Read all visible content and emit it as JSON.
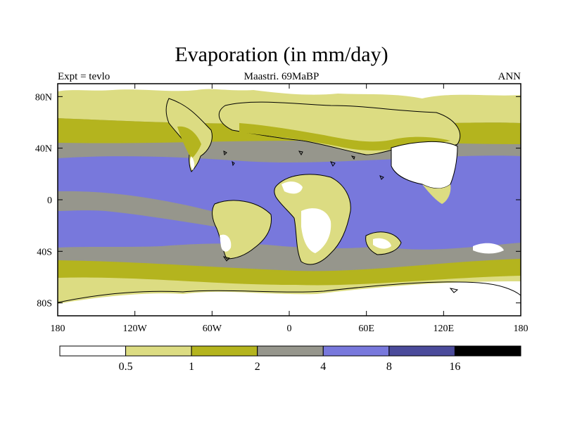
{
  "title": "Evaporation (in mm/day)",
  "subtitle_left": "Expt = tevlo",
  "subtitle_center": "Maastri.  69MaBP",
  "subtitle_right": "ANN",
  "lat_ticks": [
    {
      "value": 80,
      "label": "80N"
    },
    {
      "value": 40,
      "label": "40N"
    },
    {
      "value": 0,
      "label": "0"
    },
    {
      "value": -40,
      "label": "40S"
    },
    {
      "value": -80,
      "label": "80S"
    }
  ],
  "lon_ticks": [
    {
      "value": -180,
      "label": "180"
    },
    {
      "value": -120,
      "label": "120W"
    },
    {
      "value": -60,
      "label": "60W"
    },
    {
      "value": 0,
      "label": "0"
    },
    {
      "value": 60,
      "label": "60E"
    },
    {
      "value": 120,
      "label": "120E"
    },
    {
      "value": 180,
      "label": "180"
    }
  ],
  "colorbar": {
    "colors": [
      "#ffffff",
      "#dcdc82",
      "#b4b41e",
      "#96968c",
      "#7878dc",
      "#4b4b9b",
      "#000000"
    ],
    "labels": [
      "0.5",
      "1",
      "2",
      "4",
      "8",
      "16"
    ]
  },
  "palette": {
    "white": "#ffffff",
    "lt": "#dcdc82",
    "ol": "#b4b41e",
    "gr": "#96968c",
    "bl": "#7878dc",
    "coast": "#000000"
  }
}
